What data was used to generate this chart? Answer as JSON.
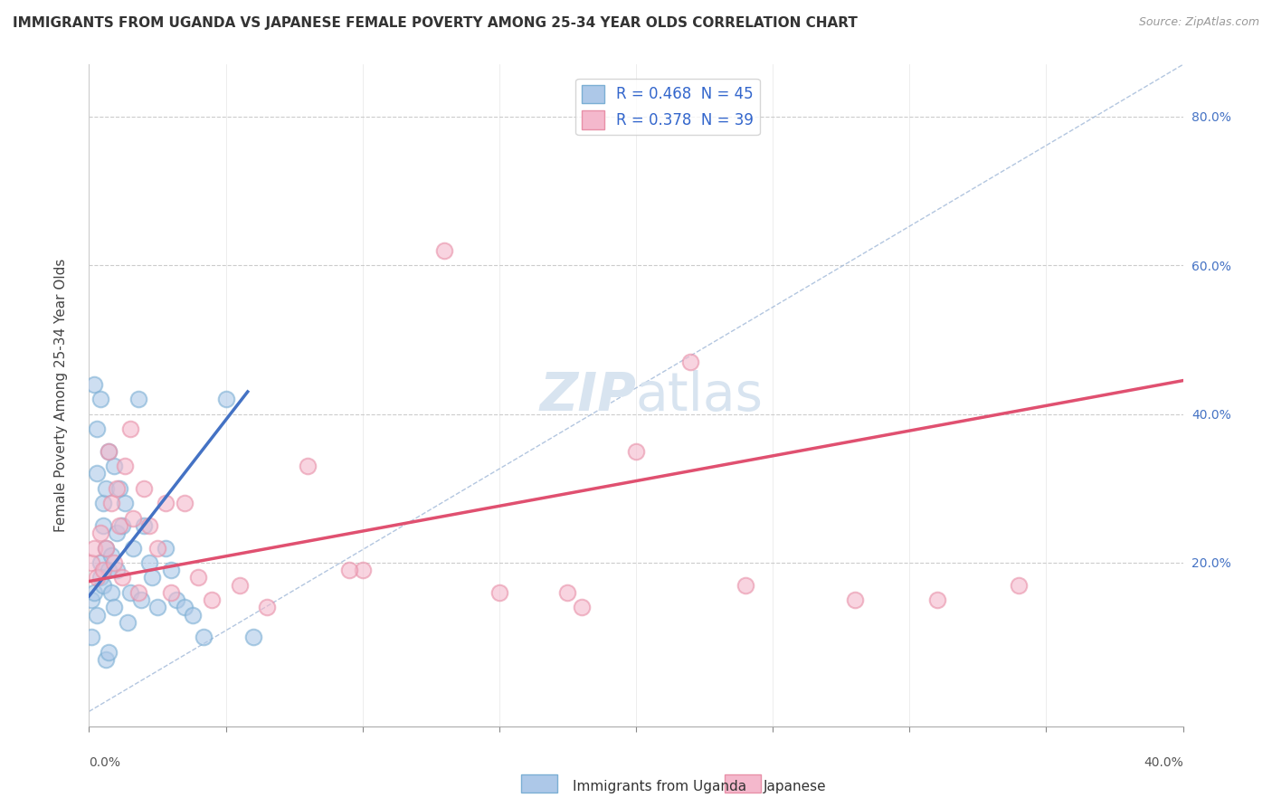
{
  "title": "IMMIGRANTS FROM UGANDA VS JAPANESE FEMALE POVERTY AMONG 25-34 YEAR OLDS CORRELATION CHART",
  "source": "Source: ZipAtlas.com",
  "ylabel": "Female Poverty Among 25-34 Year Olds",
  "xlim": [
    0.0,
    0.4
  ],
  "ylim": [
    -0.02,
    0.87
  ],
  "legend_entry_blue": "R = 0.468  N = 45",
  "legend_entry_pink": "R = 0.378  N = 39",
  "blue_scatter_x": [
    0.001,
    0.001,
    0.002,
    0.002,
    0.003,
    0.003,
    0.003,
    0.004,
    0.004,
    0.004,
    0.005,
    0.005,
    0.005,
    0.006,
    0.006,
    0.006,
    0.007,
    0.007,
    0.007,
    0.008,
    0.008,
    0.009,
    0.009,
    0.01,
    0.01,
    0.011,
    0.012,
    0.013,
    0.014,
    0.015,
    0.016,
    0.018,
    0.019,
    0.02,
    0.022,
    0.023,
    0.025,
    0.028,
    0.03,
    0.032,
    0.035,
    0.038,
    0.042,
    0.05,
    0.06
  ],
  "blue_scatter_y": [
    0.15,
    0.1,
    0.16,
    0.44,
    0.38,
    0.32,
    0.13,
    0.2,
    0.18,
    0.42,
    0.25,
    0.28,
    0.17,
    0.22,
    0.3,
    0.07,
    0.35,
    0.19,
    0.08,
    0.21,
    0.16,
    0.33,
    0.14,
    0.24,
    0.19,
    0.3,
    0.25,
    0.28,
    0.12,
    0.16,
    0.22,
    0.42,
    0.15,
    0.25,
    0.2,
    0.18,
    0.14,
    0.22,
    0.19,
    0.15,
    0.14,
    0.13,
    0.1,
    0.42,
    0.1
  ],
  "pink_scatter_x": [
    0.001,
    0.002,
    0.003,
    0.004,
    0.005,
    0.006,
    0.007,
    0.008,
    0.009,
    0.01,
    0.011,
    0.012,
    0.013,
    0.015,
    0.016,
    0.018,
    0.02,
    0.022,
    0.025,
    0.028,
    0.03,
    0.035,
    0.04,
    0.045,
    0.055,
    0.065,
    0.08,
    0.1,
    0.13,
    0.15,
    0.18,
    0.2,
    0.24,
    0.28,
    0.31,
    0.34,
    0.175,
    0.095,
    0.22
  ],
  "pink_scatter_y": [
    0.2,
    0.22,
    0.18,
    0.24,
    0.19,
    0.22,
    0.35,
    0.28,
    0.2,
    0.3,
    0.25,
    0.18,
    0.33,
    0.38,
    0.26,
    0.16,
    0.3,
    0.25,
    0.22,
    0.28,
    0.16,
    0.28,
    0.18,
    0.15,
    0.17,
    0.14,
    0.33,
    0.19,
    0.62,
    0.16,
    0.14,
    0.35,
    0.17,
    0.15,
    0.15,
    0.17,
    0.16,
    0.19,
    0.47
  ],
  "blue_line_x": [
    0.0,
    0.058
  ],
  "blue_line_y": [
    0.155,
    0.43
  ],
  "pink_line_x": [
    0.0,
    0.4
  ],
  "pink_line_y": [
    0.175,
    0.445
  ],
  "dashed_line_x": [
    0.0,
    0.4
  ],
  "dashed_line_y": [
    0.0,
    0.87
  ],
  "watermark_zip": "ZIP",
  "watermark_atlas": "atlas",
  "bg_color": "#ffffff",
  "scatter_blue_facecolor": "#adc8e8",
  "scatter_blue_edgecolor": "#7bafd4",
  "scatter_pink_facecolor": "#f4b8cc",
  "scatter_pink_edgecolor": "#e890a8",
  "line_blue_color": "#4472c4",
  "line_pink_color": "#e05070",
  "dashed_line_color": "#a0b8d8",
  "grid_color": "#cccccc",
  "title_fontsize": 11,
  "axis_label_fontsize": 11,
  "tick_fontsize": 10,
  "legend_fontsize": 12,
  "watermark_fontsize_zip": 42,
  "watermark_fontsize_atlas": 42,
  "watermark_color": "#d8e4f0",
  "right_tick_color": "#4472c4",
  "bottom_legend_label_blue": "Immigrants from Uganda",
  "bottom_legend_label_pink": "Japanese"
}
